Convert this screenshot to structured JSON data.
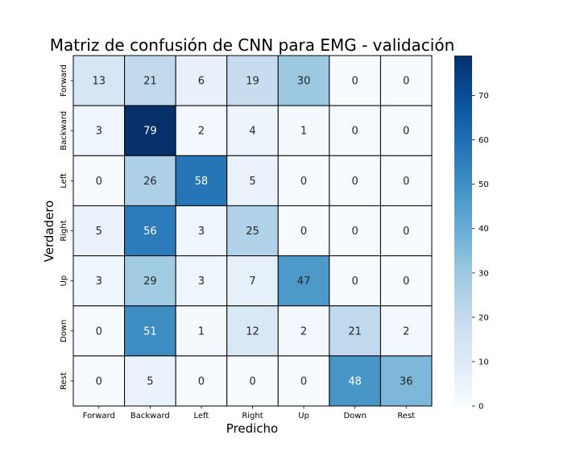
{
  "chart_data": {
    "type": "heatmap",
    "title": "Matriz de confusión de CNN para EMG - validación",
    "xlabel": "Predicho",
    "ylabel": "Verdadero",
    "x_categories": [
      "Forward",
      "Backward",
      "Left",
      "Right",
      "Up",
      "Down",
      "Rest"
    ],
    "y_categories": [
      "Forward",
      "Backward",
      "Left",
      "Right",
      "Up",
      "Down",
      "Rest"
    ],
    "values": [
      [
        13,
        21,
        6,
        19,
        30,
        0,
        0
      ],
      [
        3,
        79,
        2,
        4,
        1,
        0,
        0
      ],
      [
        0,
        26,
        58,
        5,
        0,
        0,
        0
      ],
      [
        5,
        56,
        3,
        25,
        0,
        0,
        0
      ],
      [
        3,
        29,
        3,
        7,
        47,
        0,
        0
      ],
      [
        0,
        51,
        1,
        12,
        2,
        21,
        2
      ],
      [
        0,
        5,
        0,
        0,
        0,
        48,
        36
      ]
    ],
    "colorbar": {
      "range": [
        0,
        79
      ],
      "ticks": [
        "0",
        "10",
        "20",
        "30",
        "40",
        "50",
        "60",
        "70"
      ],
      "colormap": "Blues"
    }
  }
}
